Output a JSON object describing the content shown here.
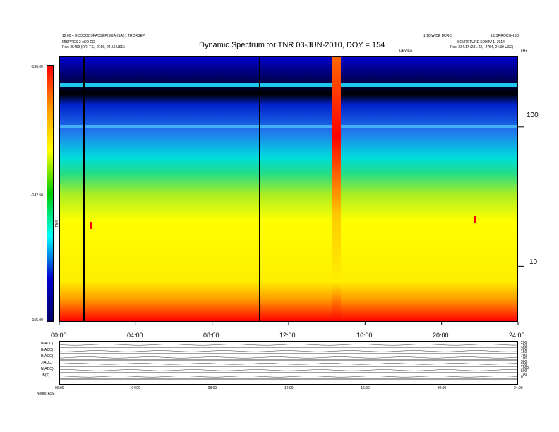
{
  "header": {
    "title": "Dynamic Spectrum for TNR 03-JUN-2010, DOY = 154",
    "left_line1": "12:00 + ECOCOOSPACSEP(SOA)(SA) 1 TRORSEP",
    "left_line2": "MISPRES 3 ±SO DD",
    "left_line3": "Pos: 25499 (RR, TS, -2156, 24.56 USE)",
    "right_line1": "1:10 WIDE DURC",
    "right_line1b": "LCSRROCH+ISD",
    "right_line2": "SOLRCTURE SDHJU 1, 2014",
    "right_line3": "Pos: 234.17 (281.42, -2754, 24.39 USE)",
    "center_small": "DEVICE",
    "unit_label": "kHz"
  },
  "colorbar": {
    "ticks": [
      "-130.00",
      "-142.50",
      "-155.00"
    ],
    "label": "TNR",
    "colors": [
      "#ff0000",
      "#ff9900",
      "#ffff00",
      "#00cc00",
      "#00ffff",
      "#0000cc",
      "#000066"
    ]
  },
  "bottom_panel": {
    "labels": [
      "B(ADC)",
      "B(ADC)",
      "B(ADC)",
      "J(ADC)",
      "N(ADC)",
      "JB(T)"
    ],
    "right_ticks": [
      [
        "200",
        "150"
      ],
      [
        "300",
        "150"
      ],
      [
        "200",
        "100"
      ],
      [
        "300",
        "250"
      ],
      [
        "1000",
        "500"
      ],
      [
        "100",
        "0"
      ]
    ],
    "foot_label": "Notes: ASE",
    "mini_times": [
      "00:00",
      "04:00",
      "08:00",
      "12:00",
      "16:00",
      "20:00",
      "24:00"
    ]
  },
  "chart_data": {
    "type": "heatmap",
    "title": "Dynamic Spectrum for TNR 03-JUN-2010, DOY = 154",
    "xlabel": "",
    "ylabel": "kHz",
    "x_ticks": [
      "00:00",
      "04:00",
      "08:00",
      "12:00",
      "16:00",
      "20:00",
      "24:00"
    ],
    "x_range_hours": [
      0,
      24
    ],
    "y_scale": "log",
    "y_ticks": [
      100,
      10
    ],
    "y_range_khz": [
      4,
      320
    ],
    "z_range": [
      -155.0,
      -130.0
    ],
    "colorbar_ticks": [
      -130.0,
      -142.5,
      -155.0
    ],
    "features": {
      "vertical_lines_hours": [
        1.2,
        10.4,
        14.6
      ],
      "burst_hours": [
        14.2,
        14.7
      ],
      "red_spots": [
        {
          "hour": 1.6,
          "khz": 20
        },
        {
          "hour": 21.7,
          "khz": 22
        }
      ]
    }
  }
}
